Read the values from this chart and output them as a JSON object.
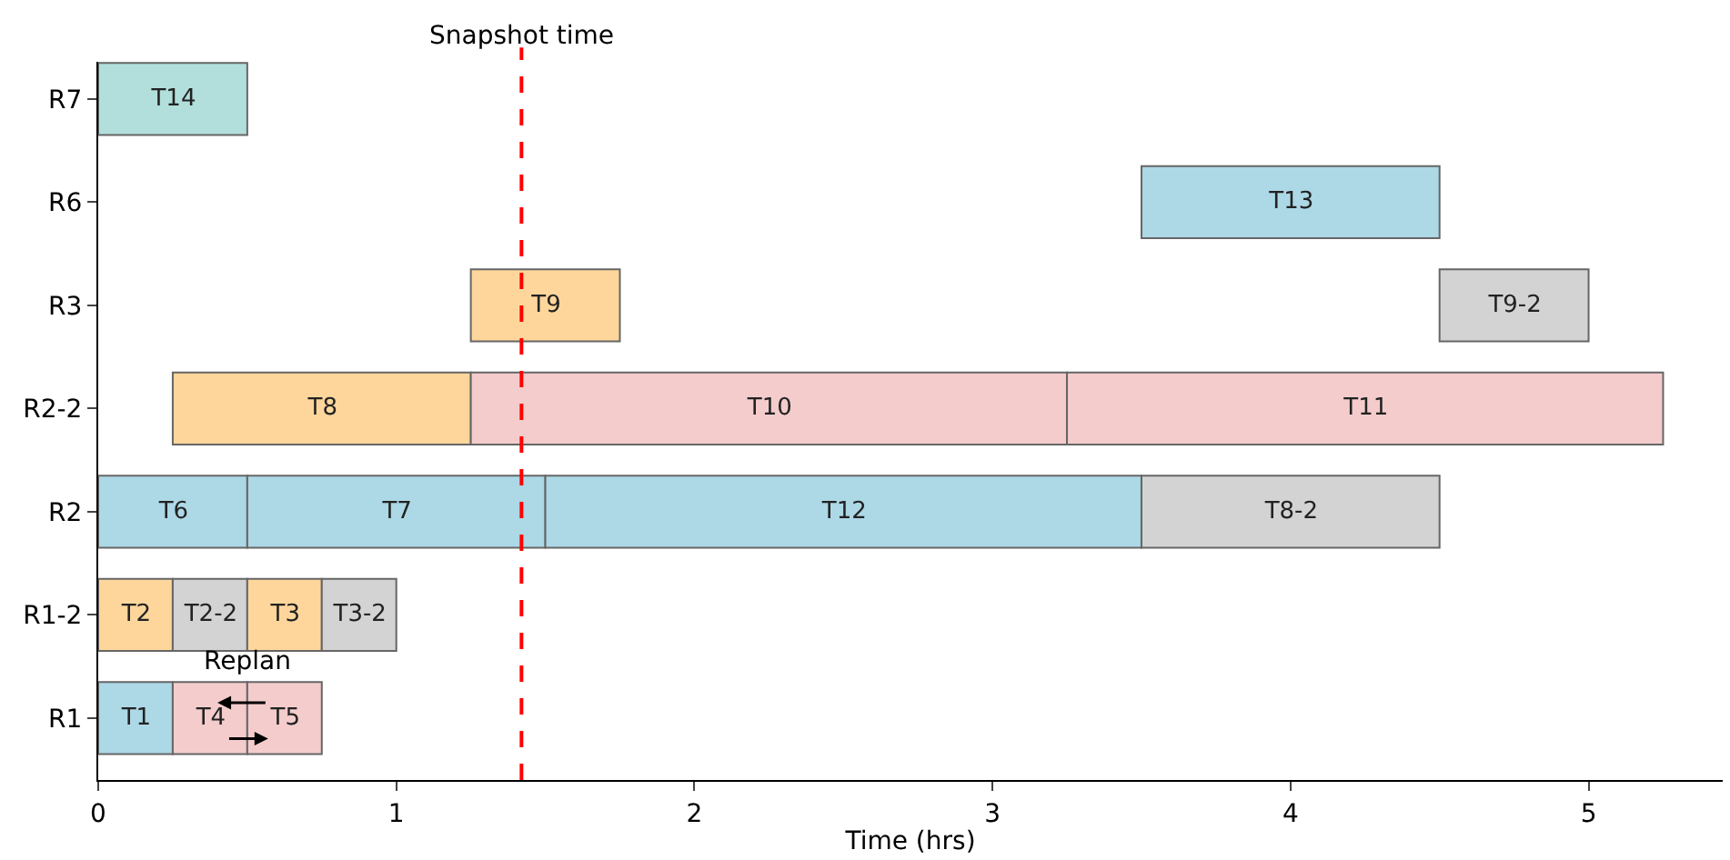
{
  "chart_data": {
    "type": "bar",
    "orientation": "horizontal",
    "xlabel": "Time (hrs)",
    "categories": [
      "R7",
      "R6",
      "R3",
      "R2-2",
      "R2",
      "R1-2",
      "R1"
    ],
    "series": [
      {
        "values": [
          0.5,
          1,
          0.5,
          1,
          0.5,
          0.25,
          0.25
        ],
        "base": [
          0,
          3.5,
          1.25,
          0.25,
          0,
          0,
          0
        ],
        "colors": [
          "#b2dfdb",
          "#add8e6",
          "#fed69b",
          "#fed69b",
          "#add8e6",
          "#fed69b",
          "#add8e6"
        ],
        "value_labels": [
          "T14",
          "T13",
          "T9",
          "T8",
          "T6",
          "T2",
          "T1"
        ]
      },
      {
        "values": [
          null,
          null,
          0.5,
          2,
          1,
          0.25,
          0.25
        ],
        "base": [
          null,
          null,
          4.5,
          1.25,
          0.5,
          0.25,
          0.25
        ],
        "colors": [
          null,
          null,
          "#d3d3d3",
          "#f4cccc",
          "#add8e6",
          "#d3d3d3",
          "#f4cccc"
        ],
        "value_labels": [
          null,
          null,
          "T9-2",
          "T10",
          "T7",
          "T2-2",
          "T4"
        ]
      },
      {
        "values": [
          null,
          null,
          null,
          2,
          2,
          0.25,
          0.25
        ],
        "base": [
          null,
          null,
          null,
          3.25,
          1.5,
          0.5,
          0.5
        ],
        "colors": [
          null,
          null,
          null,
          "#f4cccc",
          "#add8e6",
          "#fed69b",
          "#f4cccc"
        ],
        "value_labels": [
          null,
          null,
          null,
          "T11",
          "T12",
          "T3",
          "T5"
        ]
      },
      {
        "values": [
          null,
          null,
          null,
          null,
          1,
          0.25,
          null
        ],
        "base": [
          null,
          null,
          null,
          null,
          3.5,
          0.75,
          null
        ],
        "colors": [
          null,
          null,
          null,
          null,
          "#d3d3d3",
          "#d3d3d3",
          null
        ],
        "value_labels": [
          null,
          null,
          null,
          null,
          "T8-2",
          "T3-2",
          null
        ]
      }
    ],
    "xlim": [
      0,
      5.45
    ],
    "xticks": [
      0,
      1,
      2,
      3,
      4,
      5
    ],
    "ref_lines": [
      {
        "axis": "x",
        "value": 1.42,
        "label": "Snapshot time",
        "color": "#ff0000",
        "line_style": "dashed"
      }
    ],
    "annotations": [
      {
        "text": "Replan",
        "x": 0.5,
        "y": "R1"
      }
    ]
  }
}
